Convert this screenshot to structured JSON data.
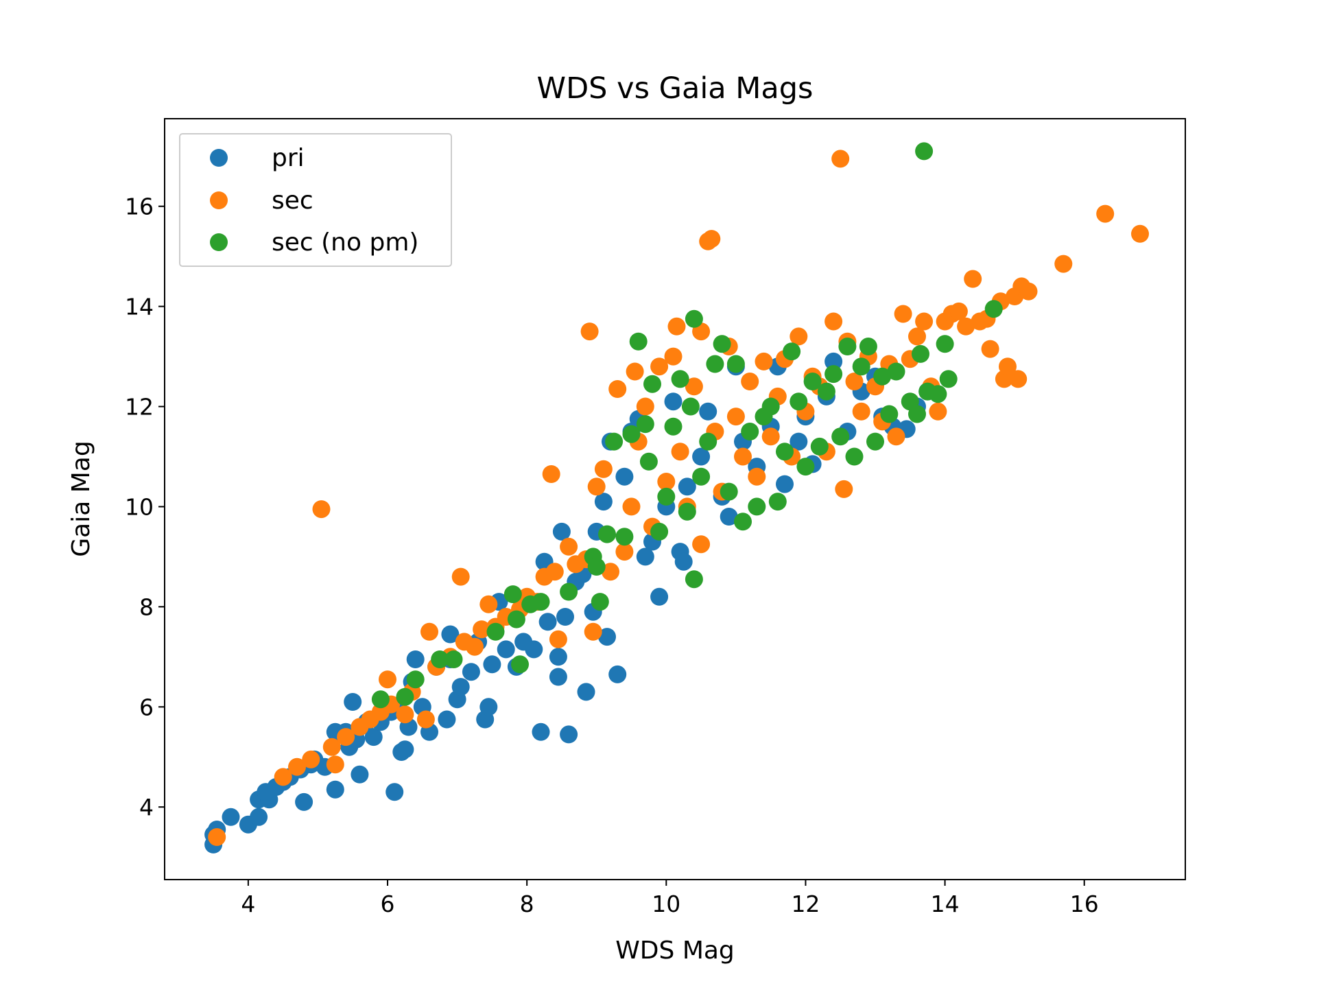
{
  "chart_data": {
    "type": "scatter",
    "title": "WDS vs Gaia Mags",
    "xlabel": "WDS Mag",
    "ylabel": "Gaia Mag",
    "xlim": [
      2.8,
      17.45
    ],
    "ylim": [
      2.55,
      17.75
    ],
    "xticks": [
      4,
      6,
      8,
      10,
      12,
      14,
      16
    ],
    "yticks": [
      4,
      6,
      8,
      10,
      12,
      14,
      16
    ],
    "grid": false,
    "legend_position": "upper-left",
    "series": [
      {
        "name": "pri",
        "color": "#1f77b4",
        "points": [
          [
            3.5,
            3.25
          ],
          [
            3.5,
            3.45
          ],
          [
            3.55,
            3.55
          ],
          [
            3.75,
            3.8
          ],
          [
            4.0,
            3.65
          ],
          [
            4.15,
            3.8
          ],
          [
            4.15,
            4.15
          ],
          [
            4.3,
            4.15
          ],
          [
            4.25,
            4.3
          ],
          [
            4.4,
            4.4
          ],
          [
            4.5,
            4.5
          ],
          [
            4.6,
            4.6
          ],
          [
            4.75,
            4.75
          ],
          [
            4.8,
            4.1
          ],
          [
            4.9,
            4.85
          ],
          [
            4.95,
            4.95
          ],
          [
            5.1,
            4.8
          ],
          [
            5.25,
            4.35
          ],
          [
            5.25,
            5.5
          ],
          [
            5.4,
            5.5
          ],
          [
            5.45,
            5.2
          ],
          [
            5.5,
            6.1
          ],
          [
            5.55,
            5.35
          ],
          [
            5.6,
            4.65
          ],
          [
            5.7,
            5.7
          ],
          [
            5.8,
            5.4
          ],
          [
            5.9,
            5.7
          ],
          [
            6.05,
            5.9
          ],
          [
            6.1,
            4.3
          ],
          [
            6.15,
            6.0
          ],
          [
            6.2,
            5.1
          ],
          [
            6.25,
            5.15
          ],
          [
            6.3,
            5.6
          ],
          [
            6.35,
            6.5
          ],
          [
            6.4,
            6.95
          ],
          [
            6.5,
            6.0
          ],
          [
            6.6,
            5.5
          ],
          [
            6.7,
            6.8
          ],
          [
            6.85,
            5.75
          ],
          [
            6.9,
            6.95
          ],
          [
            6.9,
            7.45
          ],
          [
            7.0,
            6.15
          ],
          [
            7.05,
            6.4
          ],
          [
            7.2,
            6.7
          ],
          [
            7.3,
            7.3
          ],
          [
            7.4,
            5.75
          ],
          [
            7.45,
            6.0
          ],
          [
            7.5,
            6.85
          ],
          [
            7.6,
            8.1
          ],
          [
            7.7,
            7.15
          ],
          [
            7.85,
            6.8
          ],
          [
            7.95,
            7.3
          ],
          [
            8.1,
            7.15
          ],
          [
            8.2,
            5.5
          ],
          [
            8.25,
            8.9
          ],
          [
            8.3,
            7.7
          ],
          [
            8.45,
            7.0
          ],
          [
            8.45,
            6.6
          ],
          [
            8.5,
            9.5
          ],
          [
            8.55,
            7.8
          ],
          [
            8.6,
            5.45
          ],
          [
            8.7,
            8.5
          ],
          [
            8.8,
            8.65
          ],
          [
            8.85,
            6.3
          ],
          [
            8.95,
            7.9
          ],
          [
            9.0,
            9.5
          ],
          [
            9.1,
            10.1
          ],
          [
            9.15,
            7.4
          ],
          [
            9.2,
            11.3
          ],
          [
            9.3,
            6.65
          ],
          [
            9.4,
            10.6
          ],
          [
            9.5,
            11.5
          ],
          [
            9.6,
            11.75
          ],
          [
            9.7,
            9.0
          ],
          [
            9.8,
            9.3
          ],
          [
            9.9,
            8.2
          ],
          [
            10.0,
            10.0
          ],
          [
            10.1,
            12.1
          ],
          [
            10.2,
            9.1
          ],
          [
            10.25,
            8.9
          ],
          [
            10.3,
            10.4
          ],
          [
            10.5,
            11.0
          ],
          [
            10.6,
            11.9
          ],
          [
            10.8,
            10.2
          ],
          [
            10.9,
            9.8
          ],
          [
            11.0,
            12.8
          ],
          [
            11.1,
            11.3
          ],
          [
            11.3,
            10.8
          ],
          [
            11.5,
            11.6
          ],
          [
            11.6,
            12.8
          ],
          [
            11.7,
            10.45
          ],
          [
            11.9,
            11.3
          ],
          [
            12.0,
            11.8
          ],
          [
            12.1,
            10.85
          ],
          [
            12.3,
            12.2
          ],
          [
            12.4,
            12.9
          ],
          [
            12.6,
            11.5
          ],
          [
            12.8,
            12.3
          ],
          [
            13.0,
            12.6
          ],
          [
            13.1,
            11.8
          ],
          [
            13.25,
            11.6
          ],
          [
            13.45,
            11.55
          ],
          [
            13.6,
            12.0
          ],
          [
            13.75,
            12.3
          ]
        ]
      },
      {
        "name": "sec",
        "color": "#ff7f0e",
        "points": [
          [
            3.55,
            3.4
          ],
          [
            4.5,
            4.6
          ],
          [
            4.7,
            4.8
          ],
          [
            4.9,
            4.95
          ],
          [
            5.05,
            9.95
          ],
          [
            5.2,
            5.2
          ],
          [
            5.25,
            4.85
          ],
          [
            5.4,
            5.4
          ],
          [
            5.6,
            5.6
          ],
          [
            5.75,
            5.75
          ],
          [
            5.9,
            5.9
          ],
          [
            6.0,
            6.55
          ],
          [
            6.05,
            6.05
          ],
          [
            6.25,
            5.85
          ],
          [
            6.35,
            6.3
          ],
          [
            6.55,
            5.75
          ],
          [
            6.6,
            7.5
          ],
          [
            6.7,
            6.8
          ],
          [
            6.9,
            7.0
          ],
          [
            7.05,
            8.6
          ],
          [
            7.1,
            7.3
          ],
          [
            7.25,
            7.2
          ],
          [
            7.35,
            7.55
          ],
          [
            7.45,
            8.05
          ],
          [
            7.55,
            7.6
          ],
          [
            7.7,
            7.8
          ],
          [
            7.9,
            7.95
          ],
          [
            8.0,
            8.2
          ],
          [
            8.15,
            8.1
          ],
          [
            8.25,
            8.6
          ],
          [
            8.35,
            10.65
          ],
          [
            8.4,
            8.7
          ],
          [
            8.45,
            7.35
          ],
          [
            8.6,
            9.2
          ],
          [
            8.7,
            8.85
          ],
          [
            8.85,
            8.95
          ],
          [
            8.9,
            13.5
          ],
          [
            8.95,
            7.5
          ],
          [
            9.0,
            10.4
          ],
          [
            9.1,
            10.75
          ],
          [
            9.2,
            8.7
          ],
          [
            9.3,
            12.35
          ],
          [
            9.4,
            9.1
          ],
          [
            9.5,
            10.0
          ],
          [
            9.55,
            12.7
          ],
          [
            9.6,
            11.3
          ],
          [
            9.7,
            12.0
          ],
          [
            9.8,
            9.6
          ],
          [
            9.9,
            12.8
          ],
          [
            10.0,
            10.5
          ],
          [
            10.1,
            13.0
          ],
          [
            10.15,
            13.6
          ],
          [
            10.2,
            11.1
          ],
          [
            10.3,
            10.0
          ],
          [
            10.4,
            12.4
          ],
          [
            10.5,
            9.25
          ],
          [
            10.5,
            13.5
          ],
          [
            10.6,
            15.3
          ],
          [
            10.65,
            15.35
          ],
          [
            10.7,
            11.5
          ],
          [
            10.8,
            10.3
          ],
          [
            10.9,
            13.2
          ],
          [
            11.0,
            11.8
          ],
          [
            11.1,
            11.0
          ],
          [
            11.2,
            12.5
          ],
          [
            11.3,
            10.6
          ],
          [
            11.4,
            12.9
          ],
          [
            11.5,
            11.4
          ],
          [
            11.6,
            12.2
          ],
          [
            11.7,
            12.95
          ],
          [
            11.8,
            11.0
          ],
          [
            11.9,
            13.4
          ],
          [
            12.0,
            11.9
          ],
          [
            12.1,
            12.6
          ],
          [
            12.2,
            12.4
          ],
          [
            12.3,
            11.1
          ],
          [
            12.4,
            13.7
          ],
          [
            12.5,
            16.95
          ],
          [
            12.55,
            10.35
          ],
          [
            12.6,
            13.3
          ],
          [
            12.7,
            12.5
          ],
          [
            12.8,
            11.9
          ],
          [
            12.9,
            13.0
          ],
          [
            13.0,
            12.4
          ],
          [
            13.1,
            11.7
          ],
          [
            13.2,
            12.85
          ],
          [
            13.3,
            11.4
          ],
          [
            13.4,
            13.85
          ],
          [
            13.5,
            12.95
          ],
          [
            13.6,
            13.4
          ],
          [
            13.7,
            13.7
          ],
          [
            13.8,
            12.4
          ],
          [
            13.9,
            11.9
          ],
          [
            14.0,
            13.7
          ],
          [
            14.1,
            13.85
          ],
          [
            14.2,
            13.9
          ],
          [
            14.3,
            13.6
          ],
          [
            14.4,
            14.55
          ],
          [
            14.5,
            13.7
          ],
          [
            14.6,
            13.75
          ],
          [
            14.65,
            13.15
          ],
          [
            14.8,
            14.1
          ],
          [
            14.85,
            12.55
          ],
          [
            14.9,
            12.8
          ],
          [
            15.0,
            14.2
          ],
          [
            15.05,
            12.55
          ],
          [
            15.1,
            14.4
          ],
          [
            15.2,
            14.3
          ],
          [
            15.7,
            14.85
          ],
          [
            16.3,
            15.85
          ],
          [
            16.8,
            15.45
          ]
        ]
      },
      {
        "name": "sec (no pm)",
        "color": "#2ca02c",
        "points": [
          [
            5.9,
            6.15
          ],
          [
            6.25,
            6.2
          ],
          [
            6.4,
            6.55
          ],
          [
            6.75,
            6.95
          ],
          [
            6.95,
            6.95
          ],
          [
            7.55,
            7.5
          ],
          [
            7.8,
            8.25
          ],
          [
            7.85,
            7.75
          ],
          [
            7.9,
            6.85
          ],
          [
            8.05,
            8.05
          ],
          [
            8.2,
            8.1
          ],
          [
            8.6,
            8.3
          ],
          [
            8.95,
            9.0
          ],
          [
            9.0,
            8.8
          ],
          [
            9.05,
            8.1
          ],
          [
            9.15,
            9.45
          ],
          [
            9.25,
            11.3
          ],
          [
            9.4,
            9.4
          ],
          [
            9.5,
            11.45
          ],
          [
            9.6,
            13.3
          ],
          [
            9.7,
            11.65
          ],
          [
            9.75,
            10.9
          ],
          [
            9.8,
            12.45
          ],
          [
            9.9,
            9.5
          ],
          [
            10.0,
            10.2
          ],
          [
            10.1,
            11.6
          ],
          [
            10.2,
            12.55
          ],
          [
            10.3,
            9.9
          ],
          [
            10.35,
            12.0
          ],
          [
            10.4,
            13.75
          ],
          [
            10.4,
            8.55
          ],
          [
            10.5,
            10.6
          ],
          [
            10.6,
            11.3
          ],
          [
            10.7,
            12.85
          ],
          [
            10.8,
            13.25
          ],
          [
            10.9,
            10.3
          ],
          [
            11.0,
            12.85
          ],
          [
            11.1,
            9.7
          ],
          [
            11.2,
            11.5
          ],
          [
            11.3,
            10.0
          ],
          [
            11.4,
            11.8
          ],
          [
            11.5,
            12.0
          ],
          [
            11.6,
            10.1
          ],
          [
            11.7,
            11.1
          ],
          [
            11.8,
            13.1
          ],
          [
            11.9,
            12.1
          ],
          [
            12.0,
            10.8
          ],
          [
            12.1,
            12.5
          ],
          [
            12.2,
            11.2
          ],
          [
            12.3,
            12.3
          ],
          [
            12.4,
            12.65
          ],
          [
            12.5,
            11.4
          ],
          [
            12.6,
            13.2
          ],
          [
            12.7,
            11.0
          ],
          [
            12.8,
            12.8
          ],
          [
            12.9,
            13.2
          ],
          [
            13.0,
            11.3
          ],
          [
            13.1,
            12.6
          ],
          [
            13.2,
            11.85
          ],
          [
            13.3,
            12.7
          ],
          [
            13.5,
            12.1
          ],
          [
            13.6,
            11.85
          ],
          [
            13.65,
            13.05
          ],
          [
            13.7,
            17.1
          ],
          [
            13.75,
            12.3
          ],
          [
            13.9,
            12.25
          ],
          [
            14.0,
            13.25
          ],
          [
            14.05,
            12.55
          ],
          [
            14.7,
            13.95
          ]
        ]
      }
    ]
  }
}
